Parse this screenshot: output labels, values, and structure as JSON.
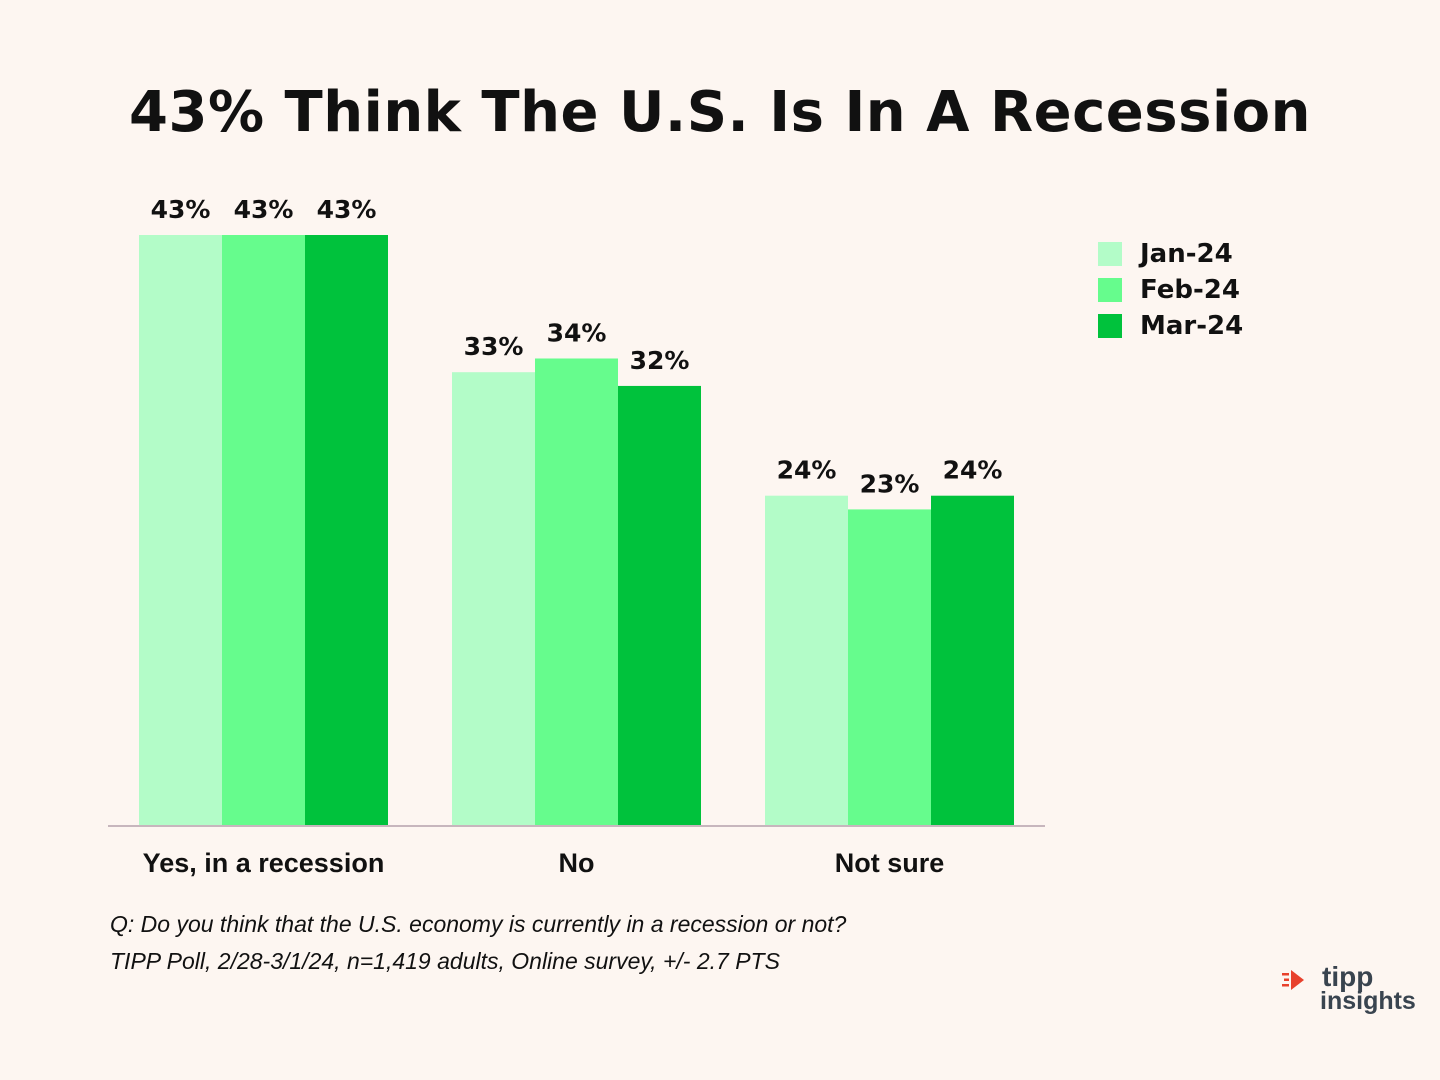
{
  "chart_data": {
    "type": "bar",
    "title": "43% Think The U.S. Is In A Recession",
    "categories": [
      "Yes, in a recession",
      "No",
      "Not sure"
    ],
    "series": [
      {
        "name": "Jan-24",
        "values": [
          43,
          33,
          24
        ],
        "labels": [
          "43%",
          "33%",
          "24%"
        ],
        "color": "#b3fcc8"
      },
      {
        "name": "Feb-24",
        "values": [
          43,
          34,
          23
        ],
        "labels": [
          "43%",
          "34%",
          "23%"
        ],
        "color": "#66fc8d"
      },
      {
        "name": "Mar-24",
        "values": [
          43,
          32,
          24
        ],
        "labels": [
          "43%",
          "32%",
          "24%"
        ],
        "color": "#00c23c"
      }
    ],
    "ylim": [
      0,
      43
    ],
    "grid": false,
    "legend_position": "top-right",
    "xlabel": "",
    "ylabel": ""
  },
  "footnote": {
    "question": "Q:  Do you think that the U.S. economy is currently in a recession or not?",
    "source": "TIPP Poll, 2/28-3/1/24, n=1,419 adults, Online survey, +/- 2.7 PTS"
  },
  "logo": {
    "line1": "tipp",
    "line2": "insights",
    "mark_color": "#e8412c"
  }
}
